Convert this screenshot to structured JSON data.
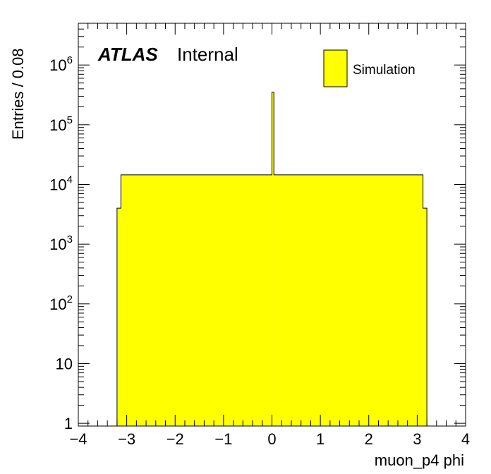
{
  "chart_data": {
    "type": "histogram",
    "xlabel": "muon_p4 phi",
    "ylabel": "Entries / 0.08",
    "xlim": [
      -4,
      4
    ],
    "ylim": [
      0.9,
      5000000
    ],
    "yscale": "log",
    "bin_width": 0.08,
    "fill_color": "#ffff00",
    "line_color": "#000000",
    "x_ticks": [
      {
        "value": -4,
        "label": "−4"
      },
      {
        "value": -3,
        "label": "−3"
      },
      {
        "value": -2,
        "label": "−2"
      },
      {
        "value": -1,
        "label": "−1"
      },
      {
        "value": 0,
        "label": "0"
      },
      {
        "value": 1,
        "label": "1"
      },
      {
        "value": 2,
        "label": "2"
      },
      {
        "value": 3,
        "label": "3"
      },
      {
        "value": 4,
        "label": "4"
      }
    ],
    "y_ticks": [
      {
        "value": 1,
        "base": "1",
        "exp": ""
      },
      {
        "value": 10,
        "base": "10",
        "exp": ""
      },
      {
        "value": 100,
        "base": "10",
        "exp": "2"
      },
      {
        "value": 1000,
        "base": "10",
        "exp": "3"
      },
      {
        "value": 10000,
        "base": "10",
        "exp": "4"
      },
      {
        "value": 100000,
        "base": "10",
        "exp": "5"
      },
      {
        "value": 1000000,
        "base": "10",
        "exp": "6"
      }
    ],
    "edges": [
      -3.2,
      -3.12,
      0.0,
      0.04,
      3.12,
      3.2
    ],
    "values": [
      4000,
      14500,
      350000,
      14500,
      4000
    ],
    "legend": [
      {
        "name": "Simulation",
        "color": "#ffff00"
      }
    ],
    "legend_position": "top-right",
    "annotation": {
      "experiment": "ATLAS",
      "status": "Internal"
    }
  }
}
